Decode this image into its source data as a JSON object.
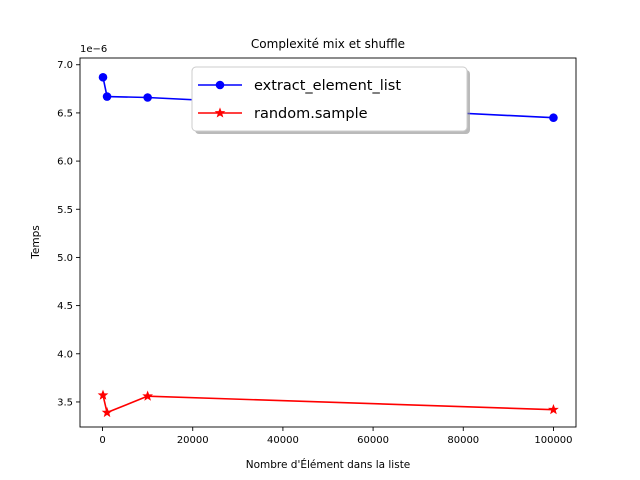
{
  "chart_data": {
    "type": "line",
    "title": "Complexité mix et shuffle",
    "xlabel": "Nombre d'Élément dans la liste",
    "ylabel": "Temps",
    "offset_label": "1e−6",
    "xlim": [
      -5000,
      105000
    ],
    "ylim": [
      3.24,
      7.07
    ],
    "x_ticks": [
      0,
      20000,
      40000,
      60000,
      80000,
      100000
    ],
    "y_ticks": [
      3.5,
      4.0,
      4.5,
      5.0,
      5.5,
      6.0,
      6.5,
      7.0
    ],
    "x_tick_labels": [
      "0",
      "20000",
      "40000",
      "60000",
      "80000",
      "100000"
    ],
    "y_tick_labels": [
      "3.5",
      "4.0",
      "4.5",
      "5.0",
      "5.5",
      "6.0",
      "6.5",
      "7.0"
    ],
    "grid": false,
    "legend_position": "top-center",
    "series": [
      {
        "name": "extract_element_list",
        "color": "#0000ff",
        "marker": "circle",
        "x": [
          100,
          1000,
          10000,
          100000
        ],
        "y": [
          6.87,
          6.67,
          6.66,
          6.45
        ]
      },
      {
        "name": "random.sample",
        "color": "#ff0000",
        "marker": "star",
        "x": [
          100,
          1000,
          10000,
          100000
        ],
        "y": [
          3.57,
          3.39,
          3.56,
          3.42
        ]
      }
    ]
  }
}
